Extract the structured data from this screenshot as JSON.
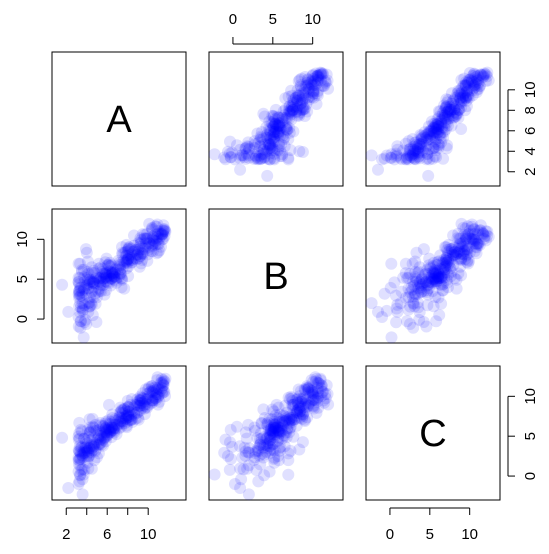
{
  "chart_data": {
    "type": "scatter",
    "title": "",
    "variables": [
      "A",
      "B",
      "C"
    ],
    "point_color": "#0000ff",
    "point_alpha": 0.12,
    "n_points": 300,
    "ranges": {
      "A": [
        1.0,
        13.3
      ],
      "B": [
        -2.5,
        13.3
      ],
      "C": [
        -2.5,
        13.3
      ]
    },
    "ticks": {
      "A": [
        2,
        4,
        6,
        8,
        10
      ],
      "A_labels": [
        "2",
        "",
        "6",
        "",
        "10"
      ],
      "A_right_labels": [
        "2",
        "4",
        "6",
        "8",
        "10"
      ],
      "B": [
        0,
        5,
        10
      ],
      "C": [
        0,
        5,
        10
      ]
    },
    "correlations": {
      "A_B": 0.85,
      "A_C": 0.95,
      "B_C": 0.88
    },
    "grid": false,
    "legend": "none"
  }
}
